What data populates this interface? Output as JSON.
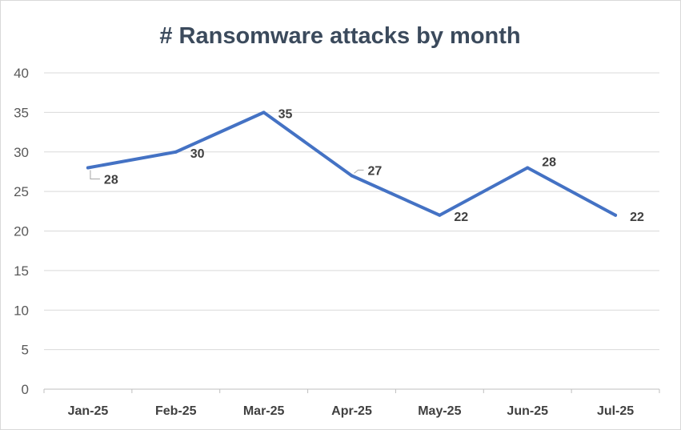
{
  "chart_data": {
    "type": "line",
    "title": "# Ransomware attacks by month",
    "xlabel": "",
    "ylabel": "",
    "categories": [
      "Jan-25",
      "Feb-25",
      "Mar-25",
      "Apr-25",
      "May-25",
      "Jun-25",
      "Jul-25"
    ],
    "series": [
      {
        "values": [
          28,
          30,
          35,
          27,
          22,
          28,
          22
        ],
        "color": "#4472c4"
      }
    ],
    "data_labels": [
      "28",
      "30",
      "35",
      "27",
      "22",
      "28",
      "22"
    ],
    "ylim": [
      0,
      40
    ],
    "yticks": [
      0,
      5,
      10,
      15,
      20,
      25,
      30,
      35,
      40
    ],
    "ytick_labels": [
      "0",
      "5",
      "10",
      "15",
      "20",
      "25",
      "30",
      "35",
      "40"
    ],
    "grid": true,
    "legend": "none",
    "colors": {
      "line": "#4472c4",
      "gridline": "#d9d9d9",
      "title": "#3b4a5c",
      "labels": "#404040"
    }
  }
}
